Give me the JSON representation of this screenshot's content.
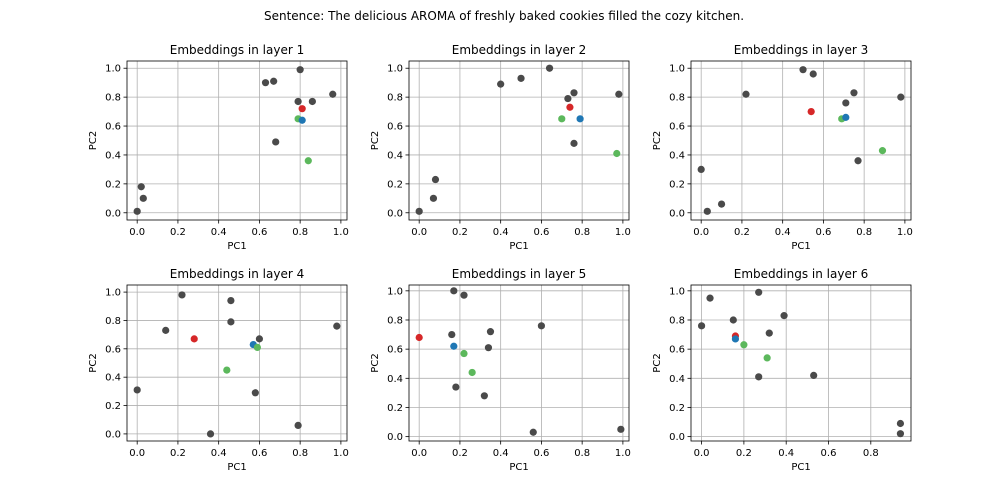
{
  "figure": {
    "suptitle": "Sentence: The delicious AROMA of freshly baked cookies filled the cozy kitchen."
  },
  "colors": {
    "other": "#4a4a4a",
    "red": "#d62728",
    "blue": "#1f77b4",
    "green": "#5cb85c",
    "grid": "#b0b0b0",
    "axis": "#000000"
  },
  "chart_data": [
    {
      "type": "scatter",
      "title": "Embeddings in layer 1",
      "xlabel": "PC1",
      "ylabel": "PC2",
      "xlim": [
        -0.05,
        1.03
      ],
      "ylim": [
        -0.05,
        1.05
      ],
      "xticks": [
        0.0,
        0.2,
        0.4,
        0.6,
        0.8,
        1.0
      ],
      "yticks": [
        0.0,
        0.2,
        0.4,
        0.6,
        0.8,
        1.0
      ],
      "grid": true,
      "points": [
        {
          "x": 0.0,
          "y": 0.01,
          "color": "other"
        },
        {
          "x": 0.02,
          "y": 0.18,
          "color": "other"
        },
        {
          "x": 0.03,
          "y": 0.1,
          "color": "other"
        },
        {
          "x": 0.63,
          "y": 0.9,
          "color": "other"
        },
        {
          "x": 0.67,
          "y": 0.91,
          "color": "other"
        },
        {
          "x": 0.8,
          "y": 0.99,
          "color": "other"
        },
        {
          "x": 0.79,
          "y": 0.77,
          "color": "other"
        },
        {
          "x": 0.86,
          "y": 0.77,
          "color": "other"
        },
        {
          "x": 0.96,
          "y": 0.82,
          "color": "other"
        },
        {
          "x": 0.68,
          "y": 0.49,
          "color": "other"
        },
        {
          "x": 0.81,
          "y": 0.72,
          "color": "red"
        },
        {
          "x": 0.79,
          "y": 0.65,
          "color": "green"
        },
        {
          "x": 0.81,
          "y": 0.64,
          "color": "blue"
        },
        {
          "x": 0.84,
          "y": 0.36,
          "color": "green"
        }
      ]
    },
    {
      "type": "scatter",
      "title": "Embeddings in layer 2",
      "xlabel": "PC1",
      "ylabel": "PC2",
      "xlim": [
        -0.05,
        1.03
      ],
      "ylim": [
        -0.05,
        1.05
      ],
      "xticks": [
        0.0,
        0.2,
        0.4,
        0.6,
        0.8,
        1.0
      ],
      "yticks": [
        0.0,
        0.2,
        0.4,
        0.6,
        0.8,
        1.0
      ],
      "grid": true,
      "points": [
        {
          "x": 0.0,
          "y": 0.01,
          "color": "other"
        },
        {
          "x": 0.07,
          "y": 0.1,
          "color": "other"
        },
        {
          "x": 0.08,
          "y": 0.23,
          "color": "other"
        },
        {
          "x": 0.4,
          "y": 0.89,
          "color": "other"
        },
        {
          "x": 0.5,
          "y": 0.93,
          "color": "other"
        },
        {
          "x": 0.64,
          "y": 1.0,
          "color": "other"
        },
        {
          "x": 0.73,
          "y": 0.79,
          "color": "other"
        },
        {
          "x": 0.76,
          "y": 0.83,
          "color": "other"
        },
        {
          "x": 0.98,
          "y": 0.82,
          "color": "other"
        },
        {
          "x": 0.76,
          "y": 0.48,
          "color": "other"
        },
        {
          "x": 0.74,
          "y": 0.73,
          "color": "red"
        },
        {
          "x": 0.7,
          "y": 0.65,
          "color": "green"
        },
        {
          "x": 0.79,
          "y": 0.65,
          "color": "blue"
        },
        {
          "x": 0.97,
          "y": 0.41,
          "color": "green"
        }
      ]
    },
    {
      "type": "scatter",
      "title": "Embeddings in layer 3",
      "xlabel": "PC1",
      "ylabel": "PC2",
      "xlim": [
        -0.05,
        1.03
      ],
      "ylim": [
        -0.05,
        1.05
      ],
      "xticks": [
        0.0,
        0.2,
        0.4,
        0.6,
        0.8,
        1.0
      ],
      "yticks": [
        0.0,
        0.2,
        0.4,
        0.6,
        0.8,
        1.0
      ],
      "grid": true,
      "points": [
        {
          "x": 0.0,
          "y": 0.3,
          "color": "other"
        },
        {
          "x": 0.03,
          "y": 0.01,
          "color": "other"
        },
        {
          "x": 0.1,
          "y": 0.06,
          "color": "other"
        },
        {
          "x": 0.22,
          "y": 0.82,
          "color": "other"
        },
        {
          "x": 0.5,
          "y": 0.99,
          "color": "other"
        },
        {
          "x": 0.55,
          "y": 0.96,
          "color": "other"
        },
        {
          "x": 0.75,
          "y": 0.83,
          "color": "other"
        },
        {
          "x": 0.71,
          "y": 0.76,
          "color": "other"
        },
        {
          "x": 0.98,
          "y": 0.8,
          "color": "other"
        },
        {
          "x": 0.77,
          "y": 0.36,
          "color": "other"
        },
        {
          "x": 0.54,
          "y": 0.7,
          "color": "red"
        },
        {
          "x": 0.69,
          "y": 0.65,
          "color": "green"
        },
        {
          "x": 0.71,
          "y": 0.66,
          "color": "blue"
        },
        {
          "x": 0.89,
          "y": 0.43,
          "color": "green"
        }
      ]
    },
    {
      "type": "scatter",
      "title": "Embeddings in layer 4",
      "xlabel": "PC1",
      "ylabel": "PC2",
      "xlim": [
        -0.05,
        1.03
      ],
      "ylim": [
        -0.05,
        1.05
      ],
      "xticks": [
        0.0,
        0.2,
        0.4,
        0.6,
        0.8,
        1.0
      ],
      "yticks": [
        0.0,
        0.2,
        0.4,
        0.6,
        0.8,
        1.0
      ],
      "grid": true,
      "points": [
        {
          "x": 0.0,
          "y": 0.31,
          "color": "other"
        },
        {
          "x": 0.14,
          "y": 0.73,
          "color": "other"
        },
        {
          "x": 0.22,
          "y": 0.98,
          "color": "other"
        },
        {
          "x": 0.36,
          "y": 0.0,
          "color": "other"
        },
        {
          "x": 0.46,
          "y": 0.94,
          "color": "other"
        },
        {
          "x": 0.46,
          "y": 0.79,
          "color": "other"
        },
        {
          "x": 0.6,
          "y": 0.67,
          "color": "other"
        },
        {
          "x": 0.58,
          "y": 0.29,
          "color": "other"
        },
        {
          "x": 0.79,
          "y": 0.06,
          "color": "other"
        },
        {
          "x": 0.98,
          "y": 0.76,
          "color": "other"
        },
        {
          "x": 0.28,
          "y": 0.67,
          "color": "red"
        },
        {
          "x": 0.57,
          "y": 0.63,
          "color": "blue"
        },
        {
          "x": 0.59,
          "y": 0.61,
          "color": "green"
        },
        {
          "x": 0.44,
          "y": 0.45,
          "color": "green"
        }
      ]
    },
    {
      "type": "scatter",
      "title": "Embeddings in layer 5",
      "xlabel": "PC1",
      "ylabel": "PC2",
      "xlim": [
        -0.05,
        1.03
      ],
      "ylim": [
        -0.03,
        1.04
      ],
      "xticks": [
        0.0,
        0.2,
        0.4,
        0.6,
        0.8,
        1.0
      ],
      "yticks": [
        0.0,
        0.2,
        0.4,
        0.6,
        0.8,
        1.0
      ],
      "grid": true,
      "points": [
        {
          "x": 0.17,
          "y": 1.0,
          "color": "other"
        },
        {
          "x": 0.22,
          "y": 0.97,
          "color": "other"
        },
        {
          "x": 0.16,
          "y": 0.7,
          "color": "other"
        },
        {
          "x": 0.35,
          "y": 0.72,
          "color": "other"
        },
        {
          "x": 0.34,
          "y": 0.61,
          "color": "other"
        },
        {
          "x": 0.6,
          "y": 0.76,
          "color": "other"
        },
        {
          "x": 0.18,
          "y": 0.34,
          "color": "other"
        },
        {
          "x": 0.32,
          "y": 0.28,
          "color": "other"
        },
        {
          "x": 0.56,
          "y": 0.03,
          "color": "other"
        },
        {
          "x": 0.99,
          "y": 0.05,
          "color": "other"
        },
        {
          "x": 0.0,
          "y": 0.68,
          "color": "red"
        },
        {
          "x": 0.17,
          "y": 0.62,
          "color": "blue"
        },
        {
          "x": 0.22,
          "y": 0.57,
          "color": "green"
        },
        {
          "x": 0.26,
          "y": 0.44,
          "color": "green"
        }
      ]
    },
    {
      "type": "scatter",
      "title": "Embeddings in layer 6",
      "xlabel": "PC1",
      "ylabel": "PC2",
      "xlim": [
        -0.05,
        0.99
      ],
      "ylim": [
        -0.03,
        1.04
      ],
      "xticks": [
        0.0,
        0.2,
        0.4,
        0.6,
        0.8
      ],
      "yticks": [
        0.0,
        0.2,
        0.4,
        0.6,
        0.8,
        1.0
      ],
      "grid": true,
      "points": [
        {
          "x": 0.0,
          "y": 0.76,
          "color": "other"
        },
        {
          "x": 0.04,
          "y": 0.95,
          "color": "other"
        },
        {
          "x": 0.27,
          "y": 0.99,
          "color": "other"
        },
        {
          "x": 0.15,
          "y": 0.8,
          "color": "other"
        },
        {
          "x": 0.39,
          "y": 0.83,
          "color": "other"
        },
        {
          "x": 0.32,
          "y": 0.71,
          "color": "other"
        },
        {
          "x": 0.27,
          "y": 0.41,
          "color": "other"
        },
        {
          "x": 0.53,
          "y": 0.42,
          "color": "other"
        },
        {
          "x": 0.94,
          "y": 0.09,
          "color": "other"
        },
        {
          "x": 0.94,
          "y": 0.02,
          "color": "other"
        },
        {
          "x": 0.16,
          "y": 0.69,
          "color": "red"
        },
        {
          "x": 0.16,
          "y": 0.67,
          "color": "blue"
        },
        {
          "x": 0.2,
          "y": 0.63,
          "color": "green"
        },
        {
          "x": 0.31,
          "y": 0.54,
          "color": "green"
        }
      ]
    }
  ]
}
